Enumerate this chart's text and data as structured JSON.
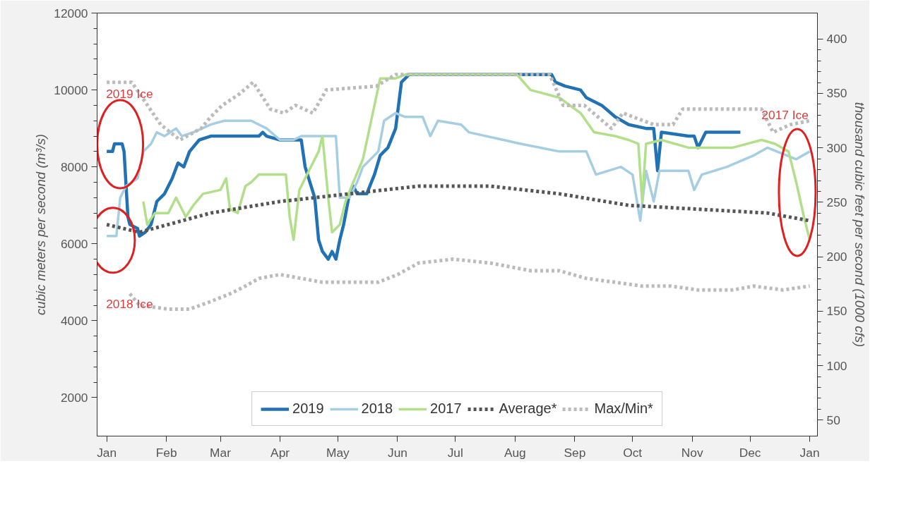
{
  "chart_data": {
    "type": "line",
    "ylabel": "cubic meters per second (m³/s)",
    "y2label": "thousand cubic feet per second (1000 cfs)",
    "xlim": [
      "2018-12-27",
      "2020-01-05"
    ],
    "xticks": [
      {
        "value": "2019-01-01",
        "label": "Jan"
      },
      {
        "value": "2019-02-01",
        "label": "Feb"
      },
      {
        "value": "2019-03-01",
        "label": "Mar"
      },
      {
        "value": "2019-04-01",
        "label": "Apr"
      },
      {
        "value": "2019-05-01",
        "label": "May"
      },
      {
        "value": "2019-06-01",
        "label": "Jun"
      },
      {
        "value": "2019-07-01",
        "label": "Jul"
      },
      {
        "value": "2019-08-01",
        "label": "Aug"
      },
      {
        "value": "2019-09-01",
        "label": "Sep"
      },
      {
        "value": "2019-10-01",
        "label": "Oct"
      },
      {
        "value": "2019-11-01",
        "label": "Nov"
      },
      {
        "value": "2019-12-01",
        "label": "Dec"
      },
      {
        "value": "2020-01-01",
        "label": "Jan"
      }
    ],
    "ylim": [
      1000,
      12000
    ],
    "yticks": [
      2000,
      4000,
      6000,
      8000,
      10000,
      12000
    ],
    "y2lim": [
      35.3,
      423.8
    ],
    "y2ticks": [
      50,
      100,
      150,
      200,
      250,
      300,
      350,
      400
    ],
    "grid": false,
    "legend": "bottom",
    "marker": "none",
    "series": [
      {
        "name": "2019",
        "color": "#2171b5",
        "line_style": "solid",
        "x": [
          "2019-01-01",
          "2019-01-04",
          "2019-01-05",
          "2019-01-09",
          "2019-01-10",
          "2019-01-12",
          "2019-01-13",
          "2019-01-17",
          "2019-01-18",
          "2019-01-21",
          "2019-01-24",
          "2019-01-27",
          "2019-01-31",
          "2019-02-04",
          "2019-02-07",
          "2019-02-10",
          "2019-02-13",
          "2019-02-18",
          "2019-02-24",
          "2019-03-06",
          "2019-03-21",
          "2019-03-23",
          "2019-03-25",
          "2019-04-01",
          "2019-04-12",
          "2019-04-14",
          "2019-04-19",
          "2019-04-21",
          "2019-04-23",
          "2019-04-26",
          "2019-04-28",
          "2019-04-30",
          "2019-05-02",
          "2019-05-04",
          "2019-05-07",
          "2019-05-09",
          "2019-05-11",
          "2019-05-13",
          "2019-05-16",
          "2019-05-20",
          "2019-05-23",
          "2019-05-27",
          "2019-05-31",
          "2019-06-03",
          "2019-06-07",
          "2019-06-12",
          "2019-06-27",
          "2019-07-20",
          "2019-08-20",
          "2019-08-22",
          "2019-08-27",
          "2019-09-04",
          "2019-09-07",
          "2019-09-15",
          "2019-09-22",
          "2019-09-29",
          "2019-10-08",
          "2019-10-12",
          "2019-10-14",
          "2019-10-16",
          "2019-10-30",
          "2019-11-02",
          "2019-11-04",
          "2019-11-08",
          "2019-11-26"
        ],
        "values": [
          8400,
          8400,
          8600,
          8600,
          8400,
          6700,
          6500,
          6400,
          6200,
          6300,
          6500,
          7100,
          7300,
          7700,
          8100,
          8000,
          8400,
          8700,
          8800,
          8800,
          8800,
          8900,
          8800,
          8700,
          8700,
          8000,
          7200,
          6100,
          5800,
          5600,
          5800,
          5600,
          6100,
          6500,
          7300,
          7500,
          7300,
          7300,
          7300,
          7800,
          8300,
          8500,
          9000,
          10200,
          10400,
          10400,
          10400,
          10400,
          10400,
          10200,
          10100,
          10000,
          9800,
          9600,
          9300,
          9100,
          9000,
          9000,
          7900,
          8900,
          8800,
          8800,
          8500,
          8900,
          8900
        ]
      },
      {
        "name": "2018",
        "color": "#a6cee3",
        "line_style": "solid",
        "x": [
          "2019-01-01",
          "2019-01-06",
          "2019-01-08",
          "2019-01-11",
          "2019-01-17",
          "2019-01-20",
          "2019-01-24",
          "2019-01-27",
          "2019-01-31",
          "2019-02-06",
          "2019-02-09",
          "2019-02-15",
          "2019-02-24",
          "2019-03-03",
          "2019-03-17",
          "2019-03-25",
          "2019-04-01",
          "2019-04-08",
          "2019-04-12",
          "2019-04-30",
          "2019-05-02",
          "2019-05-07",
          "2019-05-11",
          "2019-05-14",
          "2019-05-22",
          "2019-05-25",
          "2019-05-31",
          "2019-06-05",
          "2019-06-14",
          "2019-06-18",
          "2019-06-22",
          "2019-07-04",
          "2019-07-08",
          "2019-07-26",
          "2019-08-04",
          "2019-08-24",
          "2019-09-07",
          "2019-09-12",
          "2019-09-25",
          "2019-10-01",
          "2019-10-05",
          "2019-10-08",
          "2019-10-12",
          "2019-10-15",
          "2019-10-30",
          "2019-11-02",
          "2019-11-06",
          "2019-11-19",
          "2019-12-03",
          "2019-12-10",
          "2019-12-25",
          "2020-01-01"
        ],
        "values": [
          6200,
          6200,
          7200,
          7500,
          7700,
          8400,
          8600,
          8900,
          8800,
          9000,
          8800,
          8900,
          9100,
          9200,
          9200,
          9000,
          8700,
          8700,
          8800,
          8800,
          7200,
          7200,
          7600,
          8000,
          8400,
          9200,
          9400,
          9300,
          9300,
          8800,
          9200,
          9100,
          8900,
          8700,
          8600,
          8400,
          8400,
          7800,
          8000,
          7800,
          6600,
          7900,
          7100,
          7900,
          7900,
          7400,
          7800,
          8000,
          8300,
          8500,
          8200,
          8400
        ]
      },
      {
        "name": "2017",
        "color": "#b2df8a",
        "line_style": "solid",
        "x": [
          "2019-01-20",
          "2019-01-22",
          "2019-01-26",
          "2019-02-02",
          "2019-02-06",
          "2019-02-11",
          "2019-02-15",
          "2019-02-20",
          "2019-03-01",
          "2019-03-04",
          "2019-03-06",
          "2019-03-10",
          "2019-03-14",
          "2019-03-17",
          "2019-03-21",
          "2019-04-04",
          "2019-04-06",
          "2019-04-08",
          "2019-04-11",
          "2019-04-15",
          "2019-04-21",
          "2019-04-23",
          "2019-04-26",
          "2019-04-28",
          "2019-05-02",
          "2019-05-05",
          "2019-05-09",
          "2019-05-14",
          "2019-05-20",
          "2019-05-23",
          "2019-05-31",
          "2019-06-05",
          "2019-08-02",
          "2019-08-09",
          "2019-08-24",
          "2019-09-04",
          "2019-09-11",
          "2019-09-22",
          "2019-09-29",
          "2019-10-04",
          "2019-10-06",
          "2019-10-08",
          "2019-10-16",
          "2019-10-30",
          "2019-11-04",
          "2019-11-22",
          "2019-12-07",
          "2019-12-14",
          "2019-12-21",
          "2019-12-25",
          "2019-12-29",
          "2020-01-01"
        ],
        "values": [
          7100,
          6500,
          6800,
          6800,
          7200,
          6700,
          7000,
          7300,
          7400,
          7700,
          6900,
          6800,
          7500,
          7600,
          7800,
          7800,
          6700,
          6100,
          7400,
          7800,
          8400,
          8800,
          7200,
          6300,
          6500,
          7100,
          7600,
          8200,
          9600,
          10300,
          10300,
          10400,
          10400,
          10000,
          9800,
          9400,
          8900,
          8800,
          8700,
          8600,
          7100,
          8600,
          8700,
          8500,
          8500,
          8500,
          8700,
          8600,
          8400,
          7600,
          6700,
          6100
        ]
      },
      {
        "name": "Average*",
        "color": "#555555",
        "line_style": "dotted",
        "x": [
          "2019-01-01",
          "2019-01-18",
          "2019-02-24",
          "2019-04-01",
          "2019-05-07",
          "2019-06-12",
          "2019-07-19",
          "2019-08-24",
          "2019-09-29",
          "2019-11-04",
          "2019-12-10",
          "2020-01-01"
        ],
        "values": [
          6500,
          6300,
          6800,
          7100,
          7300,
          7500,
          7500,
          7300,
          7000,
          6900,
          6800,
          6600
        ]
      },
      {
        "name": "Max/Min*",
        "color": "#bbbbbb",
        "line_style": "dotted",
        "x": [
          "2019-01-01",
          "2019-01-14",
          "2019-01-29",
          "2019-02-08",
          "2019-02-19",
          "2019-02-24",
          "2019-03-02",
          "2019-03-11",
          "2019-03-18",
          "2019-03-27",
          "2019-04-03",
          "2019-04-09",
          "2019-04-18",
          "2019-04-25",
          "2019-05-21",
          "2019-05-31",
          "2019-08-19",
          "2019-08-26",
          "2019-09-06",
          "2019-09-13",
          "2019-09-20",
          "2019-09-26",
          "2019-10-12",
          "2019-10-22",
          "2019-10-27",
          "2019-11-30",
          "2019-12-07",
          "2019-12-13",
          "2019-12-22",
          "2020-01-01"
        ],
        "values": [
          10200,
          10200,
          9100,
          8700,
          9000,
          9300,
          9600,
          9900,
          10200,
          9500,
          9400,
          9600,
          9400,
          10000,
          10100,
          10400,
          10400,
          9600,
          9600,
          9300,
          9000,
          9400,
          9100,
          9100,
          9500,
          9500,
          9500,
          8900,
          9100,
          9200
        ]
      },
      {
        "color": "#bbbbbb",
        "line_style": "dotted",
        "x": [
          "2019-01-13",
          "2019-01-18",
          "2019-02-02",
          "2019-02-13",
          "2019-02-24",
          "2019-03-06",
          "2019-03-14",
          "2019-03-21",
          "2019-04-01",
          "2019-04-12",
          "2019-04-23",
          "2019-05-07",
          "2019-05-22",
          "2019-06-01",
          "2019-06-12",
          "2019-06-30",
          "2019-07-19",
          "2019-08-09",
          "2019-08-24",
          "2019-09-07",
          "2019-09-22",
          "2019-10-06",
          "2019-10-21",
          "2019-11-04",
          "2019-11-22",
          "2019-12-03",
          "2019-12-18",
          "2020-01-01"
        ],
        "values": [
          4700,
          4400,
          4300,
          4300,
          4500,
          4700,
          4900,
          5100,
          5200,
          5100,
          5000,
          5000,
          5000,
          5200,
          5500,
          5600,
          5500,
          5300,
          5300,
          5100,
          5000,
          4900,
          4900,
          4800,
          4800,
          4900,
          4800,
          4900
        ]
      }
    ],
    "annotations": [
      "2019 Ice",
      "2018 Ice",
      "2017 Ice"
    ]
  }
}
